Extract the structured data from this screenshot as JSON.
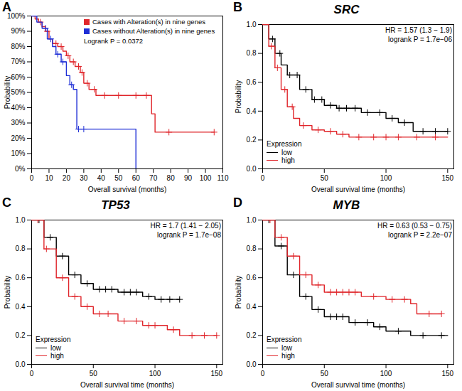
{
  "chart_data": [
    {
      "type": "line",
      "panel_label": "A",
      "xlabel": "Overall survival (months)",
      "ylabel": "Probability",
      "xlim": [
        0,
        110
      ],
      "xticks": [
        0,
        10,
        20,
        30,
        40,
        50,
        60,
        70,
        80,
        90,
        100,
        110
      ],
      "ylim": [
        0,
        100
      ],
      "yticks": [
        {
          "value": 0,
          "label": "0%"
        },
        {
          "value": 10,
          "label": "10%"
        },
        {
          "value": 20,
          "label": "20%"
        },
        {
          "value": 30,
          "label": "30%"
        },
        {
          "value": 40,
          "label": "40%"
        },
        {
          "value": 50,
          "label": "50%"
        },
        {
          "value": 60,
          "label": "60%"
        },
        {
          "value": 70,
          "label": "70%"
        },
        {
          "value": 80,
          "label": "80%"
        },
        {
          "value": 90,
          "label": "90%"
        },
        {
          "value": 100,
          "label": "100%"
        }
      ],
      "annotations": [
        "Logrank P = 0.0372"
      ],
      "legend": "top",
      "marker": "plus",
      "series": [
        {
          "name": "Cases with Alteration(s) in nine genes",
          "color": "#e0262b",
          "x": [
            0,
            2,
            4,
            6,
            8,
            10,
            12,
            15,
            18,
            20,
            22,
            25,
            28,
            30,
            33,
            37,
            69,
            71,
            105
          ],
          "values": [
            100,
            98,
            96,
            93,
            90,
            85,
            82,
            80,
            77,
            74,
            70,
            67,
            63,
            56,
            52,
            48,
            36,
            24,
            24
          ],
          "censored": [
            5,
            9,
            14,
            17,
            21,
            24,
            27,
            29,
            32,
            36,
            42,
            50,
            60,
            66,
            79,
            105
          ]
        },
        {
          "name": "Cases without Alteration(s) in nine genes",
          "color": "#1f2fd6",
          "x": [
            0,
            3,
            6,
            9,
            12,
            14,
            17,
            20,
            22,
            24,
            26,
            60
          ],
          "values": [
            100,
            96,
            92,
            85,
            80,
            75,
            70,
            61,
            55,
            52,
            26,
            0
          ],
          "censored": [
            8,
            11,
            15,
            18,
            23,
            27,
            30
          ]
        }
      ]
    },
    {
      "type": "line",
      "panel_label": "B",
      "title": "SRC",
      "xlabel": "Overall survival time (months)",
      "ylabel": "Probability",
      "xlim": [
        0,
        155
      ],
      "xticks": [
        0,
        50,
        100,
        150
      ],
      "ylim": [
        0,
        1
      ],
      "yticks": [
        {
          "value": 0,
          "label": "0.0"
        },
        0.2,
        0.4,
        0.6,
        0.8,
        {
          "value": 1,
          "label": "1.0"
        }
      ],
      "annotations": [
        "HR = 1.57 (1.3 − 1.9)",
        "logrank P = 1.7e−06"
      ],
      "legend": "bottomleft",
      "legend_title": "Expression",
      "marker": "plus",
      "series": [
        {
          "name": "low",
          "color": "#000000",
          "x": [
            0,
            5,
            10,
            15,
            20,
            30,
            40,
            50,
            60,
            80,
            100,
            110,
            122,
            150
          ],
          "values": [
            1,
            0.9,
            0.8,
            0.72,
            0.65,
            0.55,
            0.48,
            0.44,
            0.42,
            0.39,
            0.35,
            0.32,
            0.26,
            0.26
          ],
          "censored": [
            8,
            14,
            22,
            28,
            35,
            42,
            48,
            55,
            62,
            68,
            75,
            85,
            95,
            105,
            115,
            130,
            140,
            150
          ]
        },
        {
          "name": "high",
          "color": "#e0262b",
          "x": [
            0,
            5,
            10,
            15,
            20,
            25,
            30,
            40,
            50,
            60,
            70,
            150
          ],
          "values": [
            1,
            0.85,
            0.7,
            0.55,
            0.43,
            0.35,
            0.3,
            0.27,
            0.26,
            0.24,
            0.22,
            0.22
          ],
          "censored": [
            7,
            12,
            18,
            24,
            33,
            45,
            55,
            65,
            78,
            90,
            100,
            110,
            125,
            140
          ]
        }
      ]
    },
    {
      "type": "line",
      "panel_label": "C",
      "title": "TP53",
      "xlabel": "Overall survival time (months)",
      "ylabel": "Probability",
      "xlim": [
        0,
        155
      ],
      "xticks": [
        0,
        50,
        100,
        150
      ],
      "ylim": [
        0,
        1
      ],
      "yticks": [
        {
          "value": 0,
          "label": "0.0"
        },
        0.2,
        0.4,
        0.6,
        0.8,
        {
          "value": 1,
          "label": "1.0"
        }
      ],
      "annotations": [
        "HR = 1.7 (1.41 − 2.05)",
        "logrank P = 1.7e−08"
      ],
      "legend": "bottomleft",
      "legend_title": "Expression",
      "marker": "plus",
      "series": [
        {
          "name": "low",
          "color": "#000000",
          "x": [
            0,
            10,
            20,
            30,
            40,
            50,
            70,
            90,
            100,
            120
          ],
          "values": [
            1,
            0.88,
            0.75,
            0.62,
            0.56,
            0.52,
            0.5,
            0.47,
            0.45,
            0.45
          ],
          "censored": [
            6,
            15,
            25,
            35,
            45,
            55,
            60,
            65,
            75,
            80,
            85,
            95,
            105,
            112,
            120
          ]
        },
        {
          "name": "high",
          "color": "#e0262b",
          "x": [
            0,
            10,
            20,
            30,
            40,
            50,
            70,
            90,
            110,
            120,
            150
          ],
          "values": [
            1,
            0.8,
            0.6,
            0.47,
            0.4,
            0.35,
            0.3,
            0.27,
            0.24,
            0.2,
            0.2
          ],
          "censored": [
            5,
            12,
            25,
            35,
            45,
            55,
            62,
            75,
            85,
            95,
            100,
            115,
            130,
            140,
            150
          ]
        }
      ]
    },
    {
      "type": "line",
      "panel_label": "D",
      "title": "MYB",
      "xlabel": "Overall survival time (months)",
      "ylabel": "Probability",
      "xlim": [
        0,
        155
      ],
      "xticks": [
        0,
        50,
        100,
        150
      ],
      "ylim": [
        0,
        1
      ],
      "yticks": [
        {
          "value": 0,
          "label": "0.0"
        },
        0.2,
        0.4,
        0.6,
        0.8,
        {
          "value": 1,
          "label": "1.0"
        }
      ],
      "annotations": [
        "HR = 0.63 (0.53 − 0.75)",
        "logrank P = 2.2e−07"
      ],
      "legend": "bottomleft",
      "legend_title": "Expression",
      "marker": "plus",
      "series": [
        {
          "name": "low",
          "color": "#000000",
          "x": [
            0,
            10,
            20,
            30,
            40,
            50,
            70,
            90,
            100,
            120,
            150
          ],
          "values": [
            1,
            0.82,
            0.62,
            0.47,
            0.38,
            0.33,
            0.29,
            0.26,
            0.23,
            0.2,
            0.2
          ],
          "censored": [
            5,
            15,
            25,
            35,
            45,
            55,
            60,
            65,
            75,
            85,
            95,
            110,
            130,
            145
          ]
        },
        {
          "name": "high",
          "color": "#e0262b",
          "x": [
            0,
            10,
            20,
            30,
            40,
            50,
            80,
            100,
            120,
            125,
            145
          ],
          "values": [
            1,
            0.88,
            0.75,
            0.62,
            0.55,
            0.5,
            0.47,
            0.45,
            0.42,
            0.35,
            0.35
          ],
          "censored": [
            6,
            15,
            25,
            35,
            45,
            55,
            60,
            65,
            70,
            75,
            90,
            105,
            115,
            135,
            145
          ]
        }
      ]
    }
  ]
}
